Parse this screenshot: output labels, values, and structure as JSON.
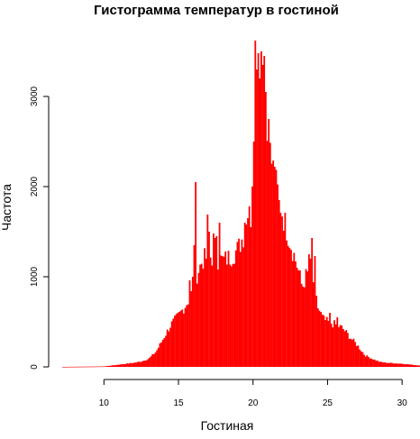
{
  "chart_data": {
    "type": "bar",
    "title": "Гистограмма температур в гостиной",
    "xlabel": "Гостиная",
    "ylabel": "Частота",
    "xlim": [
      7.2,
      31.2
    ],
    "ylim": [
      0,
      3650
    ],
    "x_ticks": [
      10,
      15,
      20,
      25,
      30
    ],
    "y_ticks": [
      0,
      1000,
      2000,
      3000
    ],
    "x_tick_labels": [
      "10",
      "15",
      "20",
      "25",
      "30"
    ],
    "y_tick_labels": [
      "0",
      "1000",
      "2000",
      "3000"
    ],
    "grid": false,
    "bin_width": 0.1,
    "bar_color": "#ff0000",
    "profile": [
      [
        7.2,
        0
      ],
      [
        10.0,
        5
      ],
      [
        10.5,
        15
      ],
      [
        11.0,
        25
      ],
      [
        11.5,
        35
      ],
      [
        12.0,
        45
      ],
      [
        12.5,
        60
      ],
      [
        13.0,
        90
      ],
      [
        13.5,
        170
      ],
      [
        14.0,
        320
      ],
      [
        14.5,
        470
      ],
      [
        15.0,
        570
      ],
      [
        15.5,
        690
      ],
      [
        15.8,
        780
      ],
      [
        16.0,
        900
      ],
      [
        16.3,
        1050
      ],
      [
        16.6,
        1180
      ],
      [
        17.0,
        1230
      ],
      [
        17.5,
        1200
      ],
      [
        18.0,
        1180
      ],
      [
        18.5,
        1220
      ],
      [
        19.0,
        1310
      ],
      [
        19.5,
        1520
      ],
      [
        20.0,
        2150
      ],
      [
        20.3,
        2850
      ],
      [
        20.6,
        2900
      ],
      [
        21.0,
        2500
      ],
      [
        21.5,
        2050
      ],
      [
        22.0,
        1680
      ],
      [
        22.5,
        1380
      ],
      [
        23.0,
        1100
      ],
      [
        23.3,
        880
      ],
      [
        23.6,
        1030
      ],
      [
        24.0,
        1000
      ],
      [
        24.3,
        680
      ],
      [
        24.7,
        530
      ],
      [
        25.0,
        500
      ],
      [
        25.5,
        470
      ],
      [
        26.0,
        430
      ],
      [
        26.5,
        330
      ],
      [
        27.0,
        240
      ],
      [
        27.5,
        130
      ],
      [
        28.0,
        90
      ],
      [
        28.5,
        55
      ],
      [
        29.0,
        45
      ],
      [
        30.0,
        35
      ],
      [
        31.2,
        15
      ]
    ],
    "spikes": [
      {
        "x": 16.1,
        "value": 2050
      },
      {
        "x": 16.0,
        "value": 1350
      },
      {
        "x": 15.9,
        "value": 1000
      },
      {
        "x": 15.7,
        "value": 960
      },
      {
        "x": 16.9,
        "value": 1690
      },
      {
        "x": 17.0,
        "value": 1500
      },
      {
        "x": 17.3,
        "value": 1480
      },
      {
        "x": 17.4,
        "value": 1430
      },
      {
        "x": 17.5,
        "value": 1450
      },
      {
        "x": 17.7,
        "value": 1600
      },
      {
        "x": 19.4,
        "value": 1600
      },
      {
        "x": 19.6,
        "value": 1650
      },
      {
        "x": 19.8,
        "value": 1550
      },
      {
        "x": 20.0,
        "value": 2500
      },
      {
        "x": 20.2,
        "value": 3300
      },
      {
        "x": 20.1,
        "value": 3620
      },
      {
        "x": 20.3,
        "value": 3480
      },
      {
        "x": 20.4,
        "value": 3200
      },
      {
        "x": 20.5,
        "value": 3500
      },
      {
        "x": 20.6,
        "value": 3350
      },
      {
        "x": 20.7,
        "value": 3450
      },
      {
        "x": 20.8,
        "value": 3050
      },
      {
        "x": 21.0,
        "value": 2750
      },
      {
        "x": 21.4,
        "value": 2220
      },
      {
        "x": 21.7,
        "value": 1850
      },
      {
        "x": 23.9,
        "value": 1430
      },
      {
        "x": 23.7,
        "value": 1250
      },
      {
        "x": 23.8,
        "value": 1200
      },
      {
        "x": 24.1,
        "value": 1230
      },
      {
        "x": 25.1,
        "value": 600
      },
      {
        "x": 25.6,
        "value": 550
      }
    ]
  }
}
